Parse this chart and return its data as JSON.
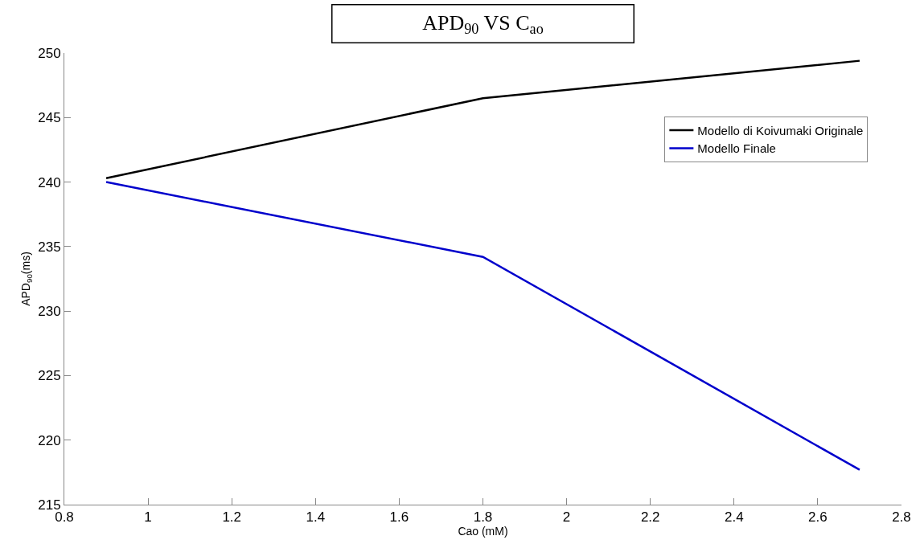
{
  "chart_data": {
    "type": "line",
    "title": "APD$_{90}$ VS C$_{ao}$",
    "xlabel": "Cao (mM)",
    "ylabel": "APD$_{90}$(ms)",
    "x": [
      0.9,
      1.8,
      2.7
    ],
    "series": [
      {
        "name": "Modello di Koivumaki Originale",
        "color": "#000000",
        "values": [
          240.3,
          246.5,
          249.4
        ]
      },
      {
        "name": "Modello Finale",
        "color": "#0000cc",
        "values": [
          240.0,
          234.2,
          217.7
        ]
      }
    ],
    "xlim": [
      0.8,
      2.8
    ],
    "xticks": [
      0.8,
      1,
      1.2,
      1.4,
      1.6,
      1.8,
      2,
      2.2,
      2.4,
      2.6,
      2.8
    ],
    "ylim": [
      215,
      250
    ],
    "yticks": [
      215,
      220,
      225,
      230,
      235,
      240,
      245,
      250
    ],
    "legend": "top right",
    "marker": "none",
    "line_style": "solid"
  }
}
